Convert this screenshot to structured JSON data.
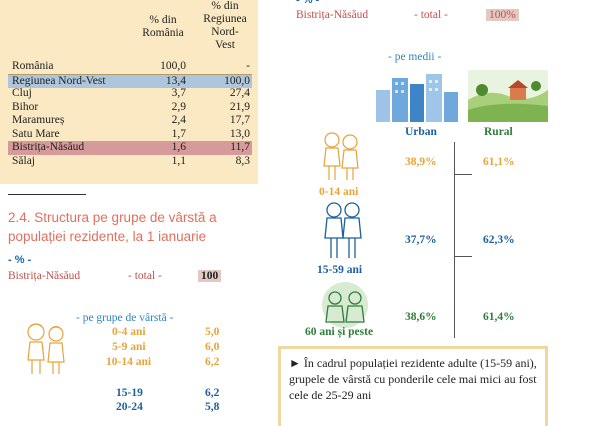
{
  "table": {
    "header_col1": "% din\nRomânia",
    "header_col2": "% din\nRegiunea\nNord-\nVest",
    "rows": [
      {
        "name": "România",
        "a": "100,0",
        "b": "-"
      },
      {
        "name": "Regiunea Nord-Vest",
        "a": "13,4",
        "b": "100,0"
      },
      {
        "name": "Cluj",
        "a": "3,7",
        "b": "27,4"
      },
      {
        "name": "Bihor",
        "a": "2,9",
        "b": "21,9"
      },
      {
        "name": "Maramureș",
        "a": "2,4",
        "b": "17,7"
      },
      {
        "name": "Satu Mare",
        "a": "1,7",
        "b": "13,0"
      },
      {
        "name": "Bistrița-Năsăud",
        "a": "1,6",
        "b": "11,7"
      },
      {
        "name": "Sălaj",
        "a": "1,1",
        "b": "8,3"
      }
    ]
  },
  "section": {
    "title_line1": "2.4. Structura pe grupe de vârstă a",
    "title_line2": "populației rezidente, la 1 ianuarie",
    "unit": "- % -",
    "county": "Bistrița-Năsăud",
    "total_label": "- total -",
    "total_value": "100",
    "by_age_label": "- pe grupe de vârstă -",
    "ages": [
      {
        "label": "0-4 ani",
        "value": "5,0"
      },
      {
        "label": "5-9 ani",
        "value": "6,0"
      },
      {
        "label": "10-14 ani",
        "value": "6,2"
      },
      {
        "label": "15-19",
        "value": "6,2"
      },
      {
        "label": "20-24",
        "value": "5,8"
      }
    ]
  },
  "right": {
    "top_unit": "- % -",
    "county": "Bistrița-Năsăud",
    "total_label": "- total -",
    "total_value": "100%",
    "by_env_label": "- pe medii -",
    "urban_label": "Urban",
    "rural_label": "Rural",
    "groups": [
      {
        "label": "0-14 ani",
        "urban": "38,9%",
        "rural": "61,1%"
      },
      {
        "label": "15-59 ani",
        "urban": "37,7%",
        "rural": "62,3%"
      },
      {
        "label": "60 ani și peste",
        "urban": "38,6%",
        "rural": "61,4%"
      }
    ],
    "info_text": "► În cadrul populației rezidente adulte (15-59 ani), grupele de vârstă cu ponderile cele mai mici au fost cele de 25-29 ani"
  },
  "colors": {
    "accent_title": "#e0705d",
    "urban": "#e8a33a",
    "rural": "#2f7d3a",
    "panel": "#fbe9c3"
  }
}
